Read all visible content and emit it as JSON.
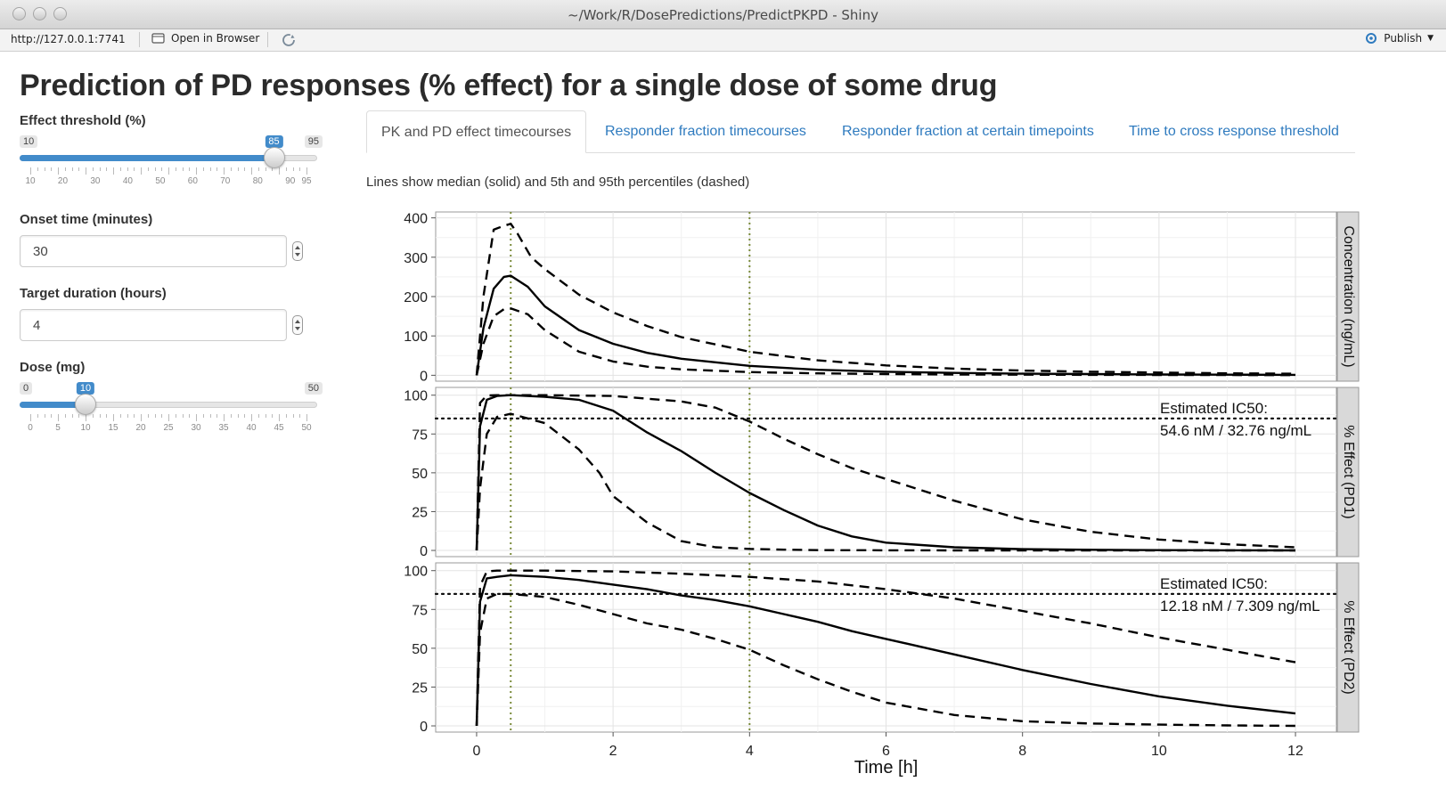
{
  "window": {
    "title": "~/Work/R/DosePredictions/PredictPKPD - Shiny"
  },
  "toolbar": {
    "url": "http://127.0.0.1:7741",
    "open_in_browser": "Open in Browser",
    "publish": "Publish"
  },
  "page": {
    "title": "Prediction of PD responses (% effect) for a single dose of some drug"
  },
  "controls": {
    "threshold": {
      "label": "Effect threshold (%)",
      "min": 10,
      "max": 95,
      "value": 85,
      "ticks": [
        10,
        20,
        30,
        40,
        50,
        60,
        70,
        80,
        90,
        95
      ]
    },
    "onset": {
      "label": "Onset time (minutes)",
      "value": "30"
    },
    "duration": {
      "label": "Target duration (hours)",
      "value": "4"
    },
    "dose": {
      "label": "Dose (mg)",
      "min": 0,
      "max": 50,
      "value": 10,
      "ticks": [
        0,
        5,
        10,
        15,
        20,
        25,
        30,
        35,
        40,
        45,
        50
      ]
    }
  },
  "tabs": [
    {
      "label": "PK and PD effect timecourses",
      "active": true
    },
    {
      "label": "Responder fraction timecourses",
      "active": false
    },
    {
      "label": "Responder fraction at certain timepoints",
      "active": false
    },
    {
      "label": "Time to cross response threshold",
      "active": false
    }
  ],
  "note": "Lines show median (solid) and 5th and 95th percentiles (dashed)",
  "colors": {
    "accent": "#428bca",
    "tab_link": "#2f7bbf",
    "strip": "#d9d9d9",
    "marker": "#7a8b3a"
  },
  "chart_data": {
    "type": "line",
    "xlabel": "Time [h]",
    "xlim": [
      -0.6,
      12.6
    ],
    "xticks": [
      0,
      2,
      4,
      6,
      8,
      10,
      12
    ],
    "vlines": [
      0.5,
      4
    ],
    "panels": [
      {
        "strip": "Concentration (ng/mL)",
        "ylim": [
          -15,
          415
        ],
        "yticks": [
          0,
          100,
          200,
          300,
          400
        ],
        "hline": null,
        "annotation": [],
        "series": [
          {
            "name": "median",
            "style": "solid",
            "x": [
              0,
              0.1,
              0.25,
              0.4,
              0.5,
              0.75,
              1,
              1.5,
              2,
              2.5,
              3,
              4,
              5,
              6,
              7,
              8,
              9,
              10,
              11,
              12
            ],
            "y": [
              0,
              120,
              220,
              250,
              253,
              225,
              175,
              115,
              80,
              57,
              42,
              24,
              14,
              9,
              6,
              4,
              3,
              2,
              1.5,
              1
            ]
          },
          {
            "name": "p95",
            "style": "dashed",
            "x": [
              0,
              0.1,
              0.25,
              0.4,
              0.5,
              0.6,
              0.8,
              1,
              1.5,
              2,
              2.5,
              3,
              4,
              5,
              6,
              7,
              8,
              9,
              10,
              11,
              12
            ],
            "y": [
              0,
              200,
              370,
              380,
              385,
              360,
              300,
              270,
              205,
              160,
              125,
              97,
              60,
              38,
              25,
              17,
              12,
              9,
              7,
              5,
              4
            ]
          },
          {
            "name": "p5",
            "style": "dashed",
            "x": [
              0,
              0.1,
              0.25,
              0.4,
              0.5,
              0.75,
              1,
              1.5,
              2,
              2.5,
              3,
              4,
              5,
              6,
              7,
              8,
              9,
              10,
              11,
              12
            ],
            "y": [
              0,
              80,
              150,
              168,
              170,
              155,
              115,
              60,
              35,
              22,
              15,
              8,
              5,
              3,
              2,
              1.5,
              1,
              0.8,
              0.6,
              0.5
            ]
          }
        ]
      },
      {
        "strip": "% Effect (PD1)",
        "ylim": [
          -4,
          105
        ],
        "yticks": [
          0,
          25,
          50,
          75,
          100
        ],
        "hline": 85,
        "annotation": [
          "Estimated IC50:",
          "54.6 nM / 32.76 ng/mL"
        ],
        "series": [
          {
            "name": "median",
            "style": "solid",
            "x": [
              0,
              0.05,
              0.15,
              0.3,
              0.5,
              1,
              1.5,
              2,
              2.5,
              3,
              3.5,
              4,
              4.5,
              5,
              5.5,
              6,
              7,
              8,
              9,
              10,
              11,
              12
            ],
            "y": [
              0,
              80,
              97,
              99.5,
              100,
              99,
              97,
              90,
              76,
              64,
              50,
              37,
              26,
              16,
              9,
              5,
              2,
              0.8,
              0.4,
              0.2,
              0.1,
              0
            ]
          },
          {
            "name": "p95",
            "style": "dashed",
            "x": [
              0,
              0.05,
              0.15,
              0.3,
              0.5,
              1,
              2,
              3,
              3.5,
              4,
              4.5,
              5,
              5.5,
              6,
              7,
              8,
              9,
              10,
              11,
              12
            ],
            "y": [
              0,
              95,
              99.8,
              100,
              100,
              100,
              99.5,
              96,
              92,
              83,
              72,
              62,
              53,
              46,
              32,
              20,
              12,
              7,
              4,
              2
            ]
          },
          {
            "name": "p5",
            "style": "dashed",
            "x": [
              0,
              0.05,
              0.15,
              0.3,
              0.5,
              1,
              1.5,
              1.8,
              2,
              2.5,
              3,
              3.5,
              4,
              4.5,
              5,
              6,
              7,
              8,
              9,
              10,
              11,
              12
            ],
            "y": [
              0,
              40,
              75,
              86,
              88,
              82,
              65,
              50,
              35,
              18,
              6,
              2,
              1,
              0.5,
              0.2,
              0.1,
              0,
              0,
              0,
              0,
              0,
              0
            ]
          }
        ]
      },
      {
        "strip": "% Effect (PD2)",
        "ylim": [
          -4,
          105
        ],
        "yticks": [
          0,
          25,
          50,
          75,
          100
        ],
        "hline": 85,
        "annotation": [
          "Estimated IC50:",
          "12.18 nM / 7.309 ng/mL"
        ],
        "series": [
          {
            "name": "median",
            "style": "solid",
            "x": [
              0,
              0.05,
              0.15,
              0.3,
              0.5,
              1,
              1.5,
              2,
              2.5,
              3,
              3.5,
              4,
              4.5,
              5,
              5.5,
              6,
              7,
              8,
              9,
              10,
              11,
              12
            ],
            "y": [
              0,
              80,
              95,
              96,
              97,
              96,
              94,
              91,
              88,
              84,
              81,
              77,
              72,
              67,
              61,
              56,
              46,
              36,
              27,
              19,
              13,
              8
            ]
          },
          {
            "name": "p95",
            "style": "dashed",
            "x": [
              0,
              0.05,
              0.15,
              0.3,
              0.5,
              1,
              2,
              3,
              4,
              5,
              6,
              7,
              8,
              9,
              10,
              11,
              12
            ],
            "y": [
              0,
              90,
              99.5,
              100,
              100,
              100,
              99.5,
              98,
              96,
              93,
              88,
              82,
              74,
              66,
              57,
              49,
              41
            ]
          },
          {
            "name": "p5",
            "style": "dashed",
            "x": [
              0,
              0.05,
              0.15,
              0.3,
              0.5,
              1,
              1.5,
              2,
              2.5,
              3,
              3.5,
              4,
              4.5,
              5,
              5.5,
              6,
              7,
              8,
              9,
              10,
              11,
              12
            ],
            "y": [
              0,
              60,
              82,
              85,
              85,
              83,
              78,
              72,
              66,
              62,
              56,
              49,
              39,
              30,
              22,
              15,
              7,
              3,
              1.5,
              0.8,
              0.3,
              0
            ]
          }
        ]
      }
    ]
  }
}
